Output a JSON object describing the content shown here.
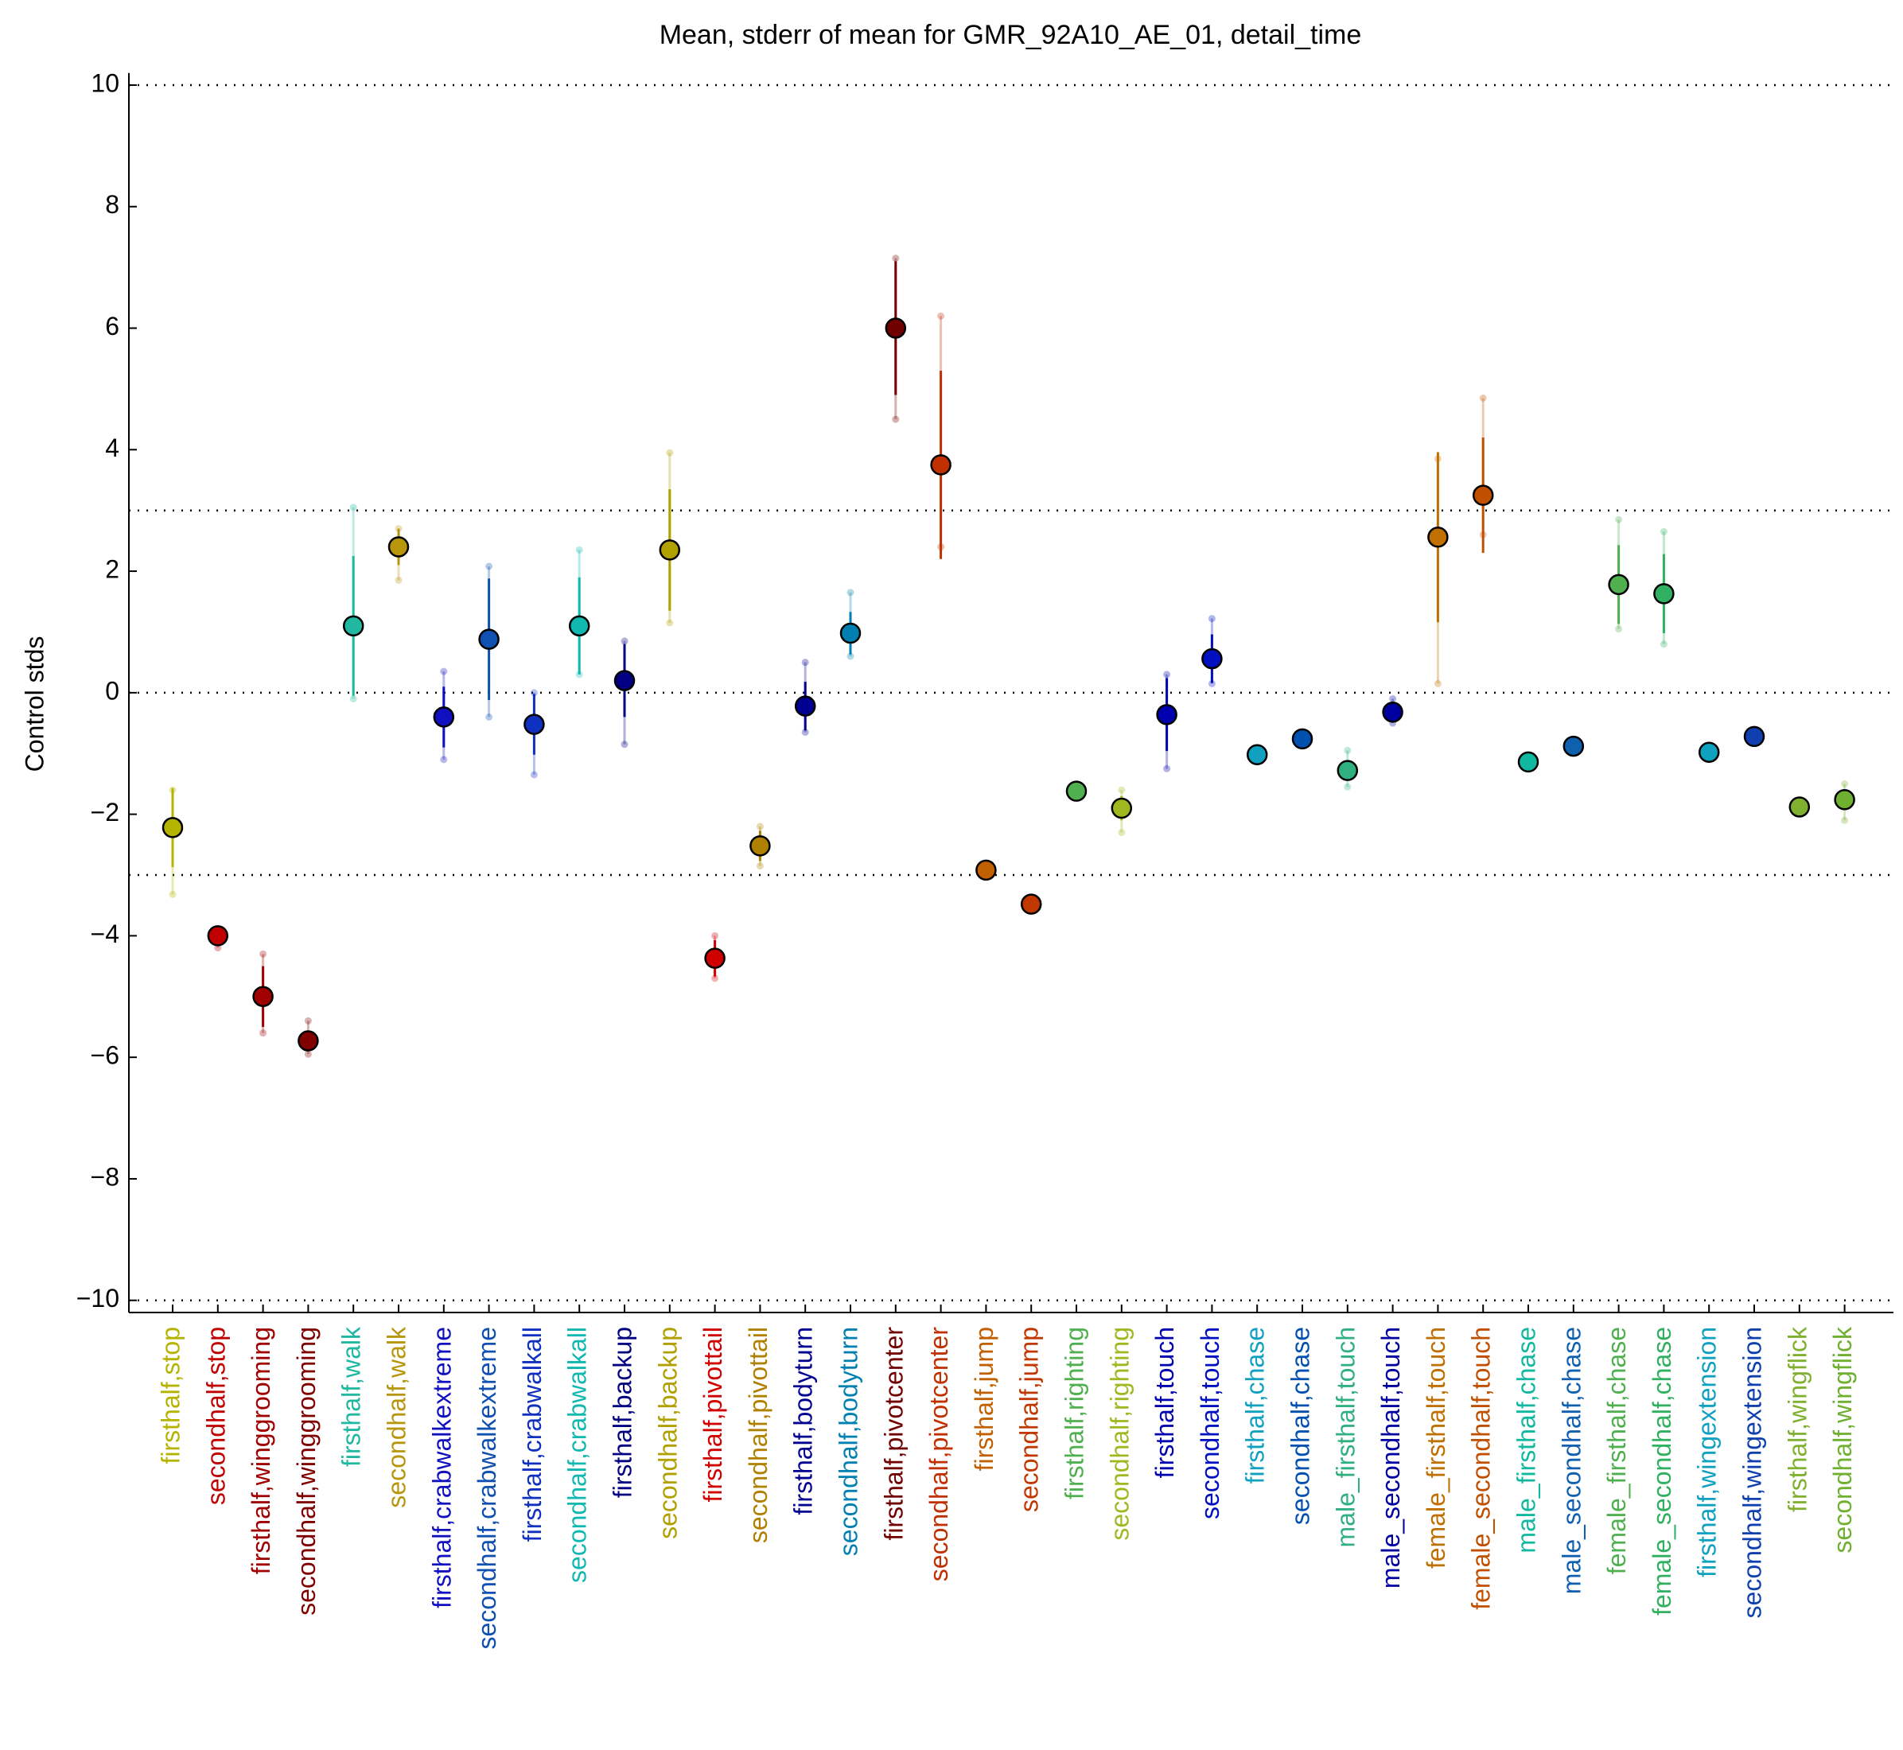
{
  "chart_data": {
    "type": "errorbar",
    "title": "Mean, stderr of mean for GMR_92A10_AE_01, detail_time",
    "y_label": "Control stds",
    "categories": [
      "firsthalf,stop",
      "secondhalf,stop",
      "firsthalf,winggrooming",
      "secondhalf,winggrooming",
      "firsthalf,walk",
      "secondhalf,walk",
      "firsthalf,crabwalkextreme",
      "secondhalf,crabwalkextreme",
      "firsthalf,crabwalkall",
      "secondhalf,crabwalkall",
      "firsthalf,backup",
      "secondhalf,backup",
      "firsthalf,pivottail",
      "secondhalf,pivottail",
      "firsthalf,bodyturn",
      "secondhalf,bodyturn",
      "firsthalf,pivotcenter",
      "secondhalf,pivotcenter",
      "firsthalf,jump",
      "secondhalf,jump",
      "firsthalf,righting",
      "secondhalf,righting",
      "firsthalf,touch",
      "secondhalf,touch",
      "firsthalf,chase",
      "secondhalf,chase",
      "male_firsthalf,touch",
      "male_secondhalf,touch",
      "female_firsthalf,touch",
      "female_secondhalf,touch",
      "male_firsthalf,chase",
      "male_secondhalf,chase",
      "female_firsthalf,chase",
      "female_secondhalf,chase",
      "firsthalf,wingextension",
      "secondhalf,wingextension",
      "firsthalf,wingflick",
      "secondhalf,wingflick"
    ],
    "values": [
      -2.22,
      -4.0,
      -5.0,
      -5.73,
      1.1,
      2.4,
      -0.4,
      0.88,
      -0.52,
      1.1,
      0.2,
      2.35,
      -4.37,
      -2.52,
      -0.22,
      0.98,
      6.0,
      3.75,
      -2.92,
      -3.48,
      -1.62,
      -1.9,
      -0.36,
      0.56,
      -1.02,
      -0.76,
      -1.28,
      -0.32,
      2.56,
      3.25,
      -1.14,
      -0.88,
      1.78,
      1.63,
      -0.98,
      -0.72,
      -1.88,
      -1.76
    ],
    "errors": [
      0.65,
      0.1,
      0.5,
      0.15,
      1.15,
      0.3,
      0.5,
      1.0,
      0.5,
      0.8,
      0.6,
      1.0,
      0.3,
      0.25,
      0.4,
      0.35,
      1.1,
      1.55,
      null,
      null,
      null,
      0.2,
      0.6,
      0.4,
      null,
      null,
      0.15,
      0.1,
      1.4,
      0.95,
      null,
      null,
      0.65,
      0.65,
      null,
      null,
      null,
      0.1
    ],
    "range_low": [
      -3.32,
      -4.2,
      -5.6,
      -5.95,
      -0.1,
      1.85,
      -1.1,
      -0.4,
      -1.35,
      0.3,
      -0.85,
      1.15,
      -4.7,
      -2.85,
      -0.65,
      0.6,
      4.5,
      2.4,
      null,
      null,
      null,
      -2.3,
      -1.25,
      0.15,
      null,
      null,
      -1.55,
      -0.5,
      0.15,
      2.6,
      null,
      null,
      1.05,
      0.8,
      null,
      null,
      null,
      -2.1
    ],
    "range_high": [
      -1.6,
      -3.95,
      -4.3,
      -5.4,
      3.05,
      2.7,
      0.35,
      2.08,
      0.0,
      2.35,
      0.85,
      3.95,
      -4.0,
      -2.2,
      0.5,
      1.65,
      7.15,
      6.2,
      null,
      null,
      null,
      -1.6,
      0.3,
      1.22,
      null,
      null,
      -0.95,
      -0.1,
      3.85,
      4.85,
      null,
      null,
      2.85,
      2.65,
      null,
      null,
      null,
      -1.5
    ],
    "colors": [
      "#b4b400",
      "#c00000",
      "#a00000",
      "#800000",
      "#20b8a0",
      "#b8960c",
      "#1010c0",
      "#1050b0",
      "#1030c0",
      "#10b8b0",
      "#000080",
      "#b0a000",
      "#d00000",
      "#b08000",
      "#000090",
      "#0080b0",
      "#700000",
      "#c03000",
      "#c06000",
      "#c03800",
      "#50b050",
      "#a0b820",
      "#0000b0",
      "#0010c0",
      "#10a0c0",
      "#0050b0",
      "#30b080",
      "#0000a0",
      "#c07000",
      "#c05000",
      "#10b8a0",
      "#1060b0",
      "#50b050",
      "#30b060",
      "#10a0c0",
      "#1040b0",
      "#80b030",
      "#70b030"
    ],
    "ylim": [
      -10.2,
      10.2
    ],
    "yticks": [
      {
        "value": -10,
        "label": "−10"
      },
      {
        "value": -8,
        "label": "−8"
      },
      {
        "value": -6,
        "label": "−6"
      },
      {
        "value": -4,
        "label": "−4"
      },
      {
        "value": -2,
        "label": "−2"
      },
      0,
      2,
      4,
      6,
      8,
      10
    ],
    "hlines": [
      10,
      3,
      0,
      -3,
      -10
    ]
  }
}
